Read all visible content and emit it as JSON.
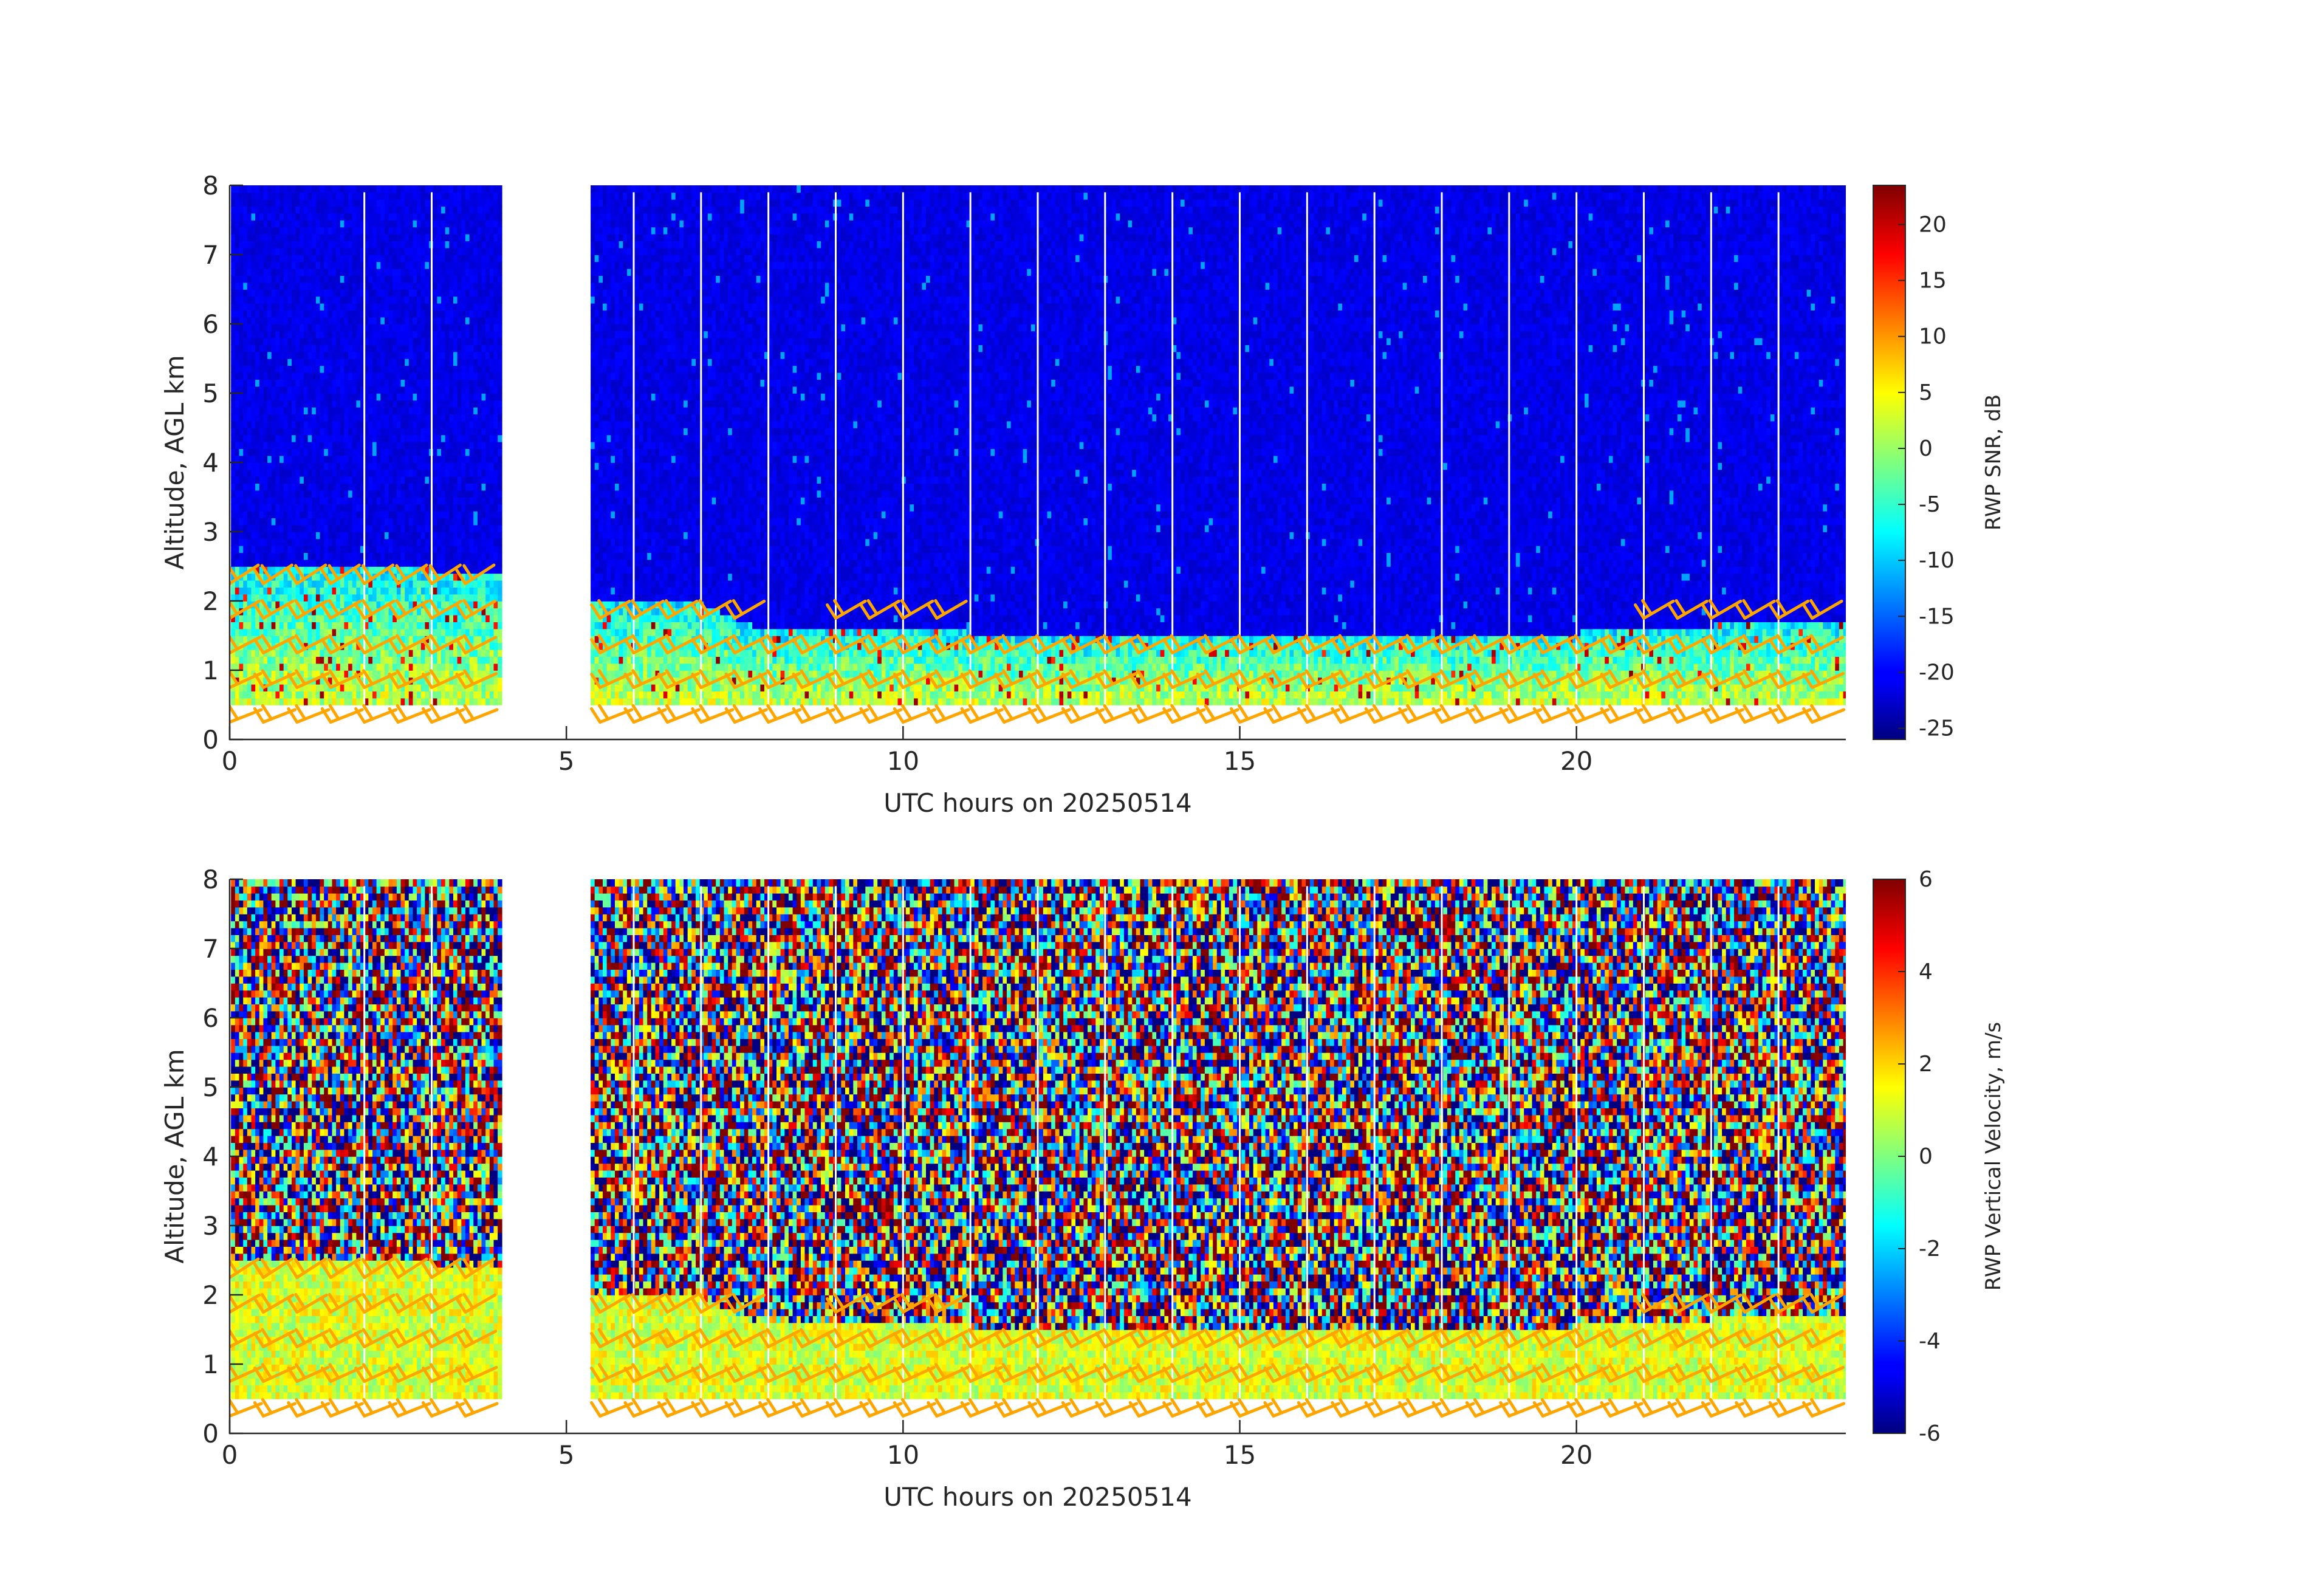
{
  "figure": {
    "date": "20250514"
  },
  "chart_data": [
    {
      "type": "heatmap",
      "title": "",
      "xlabel": "UTC hours on 20250514",
      "ylabel": "Altitude, AGL km",
      "xlim": [
        0,
        24
      ],
      "ylim": [
        0,
        8
      ],
      "xticks": [
        0,
        5,
        10,
        15,
        20
      ],
      "yticks": [
        0,
        1,
        2,
        3,
        4,
        5,
        6,
        7,
        8
      ],
      "colorbar": {
        "label": "RWP SNR, dB",
        "colormap": "jet",
        "range": [
          -26,
          23.5
        ],
        "ticks": [
          -25,
          -20,
          -15,
          -10,
          -5,
          0,
          5,
          10,
          15,
          20
        ]
      },
      "data_gaps_hours": [
        [
          4.0,
          5.3
        ]
      ],
      "valid_altitude_km": [
        0.5,
        7.9
      ],
      "boundary_layer_top_km": [
        [
          0,
          2.5
        ],
        [
          2,
          2.5
        ],
        [
          3,
          2.4
        ],
        [
          4,
          2.4
        ],
        [
          5.3,
          2.0
        ],
        [
          7,
          1.9
        ],
        [
          8,
          1.5
        ],
        [
          10,
          1.6
        ],
        [
          12,
          1.4
        ],
        [
          14,
          1.5
        ],
        [
          16,
          1.5
        ],
        [
          18,
          1.5
        ],
        [
          20,
          1.5
        ],
        [
          22,
          1.6
        ],
        [
          24,
          1.7
        ]
      ],
      "wind_barbs": {
        "color": "#ffa500"
      }
    },
    {
      "type": "heatmap",
      "title": "",
      "xlabel": "UTC hours on 20250514",
      "ylabel": "Altitude, AGL km",
      "xlim": [
        0,
        24
      ],
      "ylim": [
        0,
        8
      ],
      "xticks": [
        0,
        5,
        10,
        15,
        20
      ],
      "yticks": [
        0,
        1,
        2,
        3,
        4,
        5,
        6,
        7,
        8
      ],
      "colorbar": {
        "label": "RWP Vertical Velocity, m/s",
        "colormap": "jet",
        "range": [
          -6,
          6
        ],
        "ticks": [
          -6,
          -4,
          -2,
          0,
          2,
          4,
          6
        ]
      },
      "data_gaps_hours": [
        [
          4.0,
          5.3
        ]
      ],
      "valid_altitude_km": [
        0.5,
        7.9
      ],
      "boundary_layer_top_km": [
        [
          0,
          2.5
        ],
        [
          2,
          2.5
        ],
        [
          3,
          2.4
        ],
        [
          4,
          2.4
        ],
        [
          5.3,
          2.0
        ],
        [
          7,
          1.9
        ],
        [
          8,
          1.5
        ],
        [
          10,
          1.6
        ],
        [
          12,
          1.4
        ],
        [
          14,
          1.5
        ],
        [
          16,
          1.5
        ],
        [
          18,
          1.5
        ],
        [
          20,
          1.5
        ],
        [
          22,
          1.6
        ],
        [
          24,
          1.7
        ]
      ],
      "wind_barbs": {
        "color": "#ffa500"
      }
    }
  ]
}
